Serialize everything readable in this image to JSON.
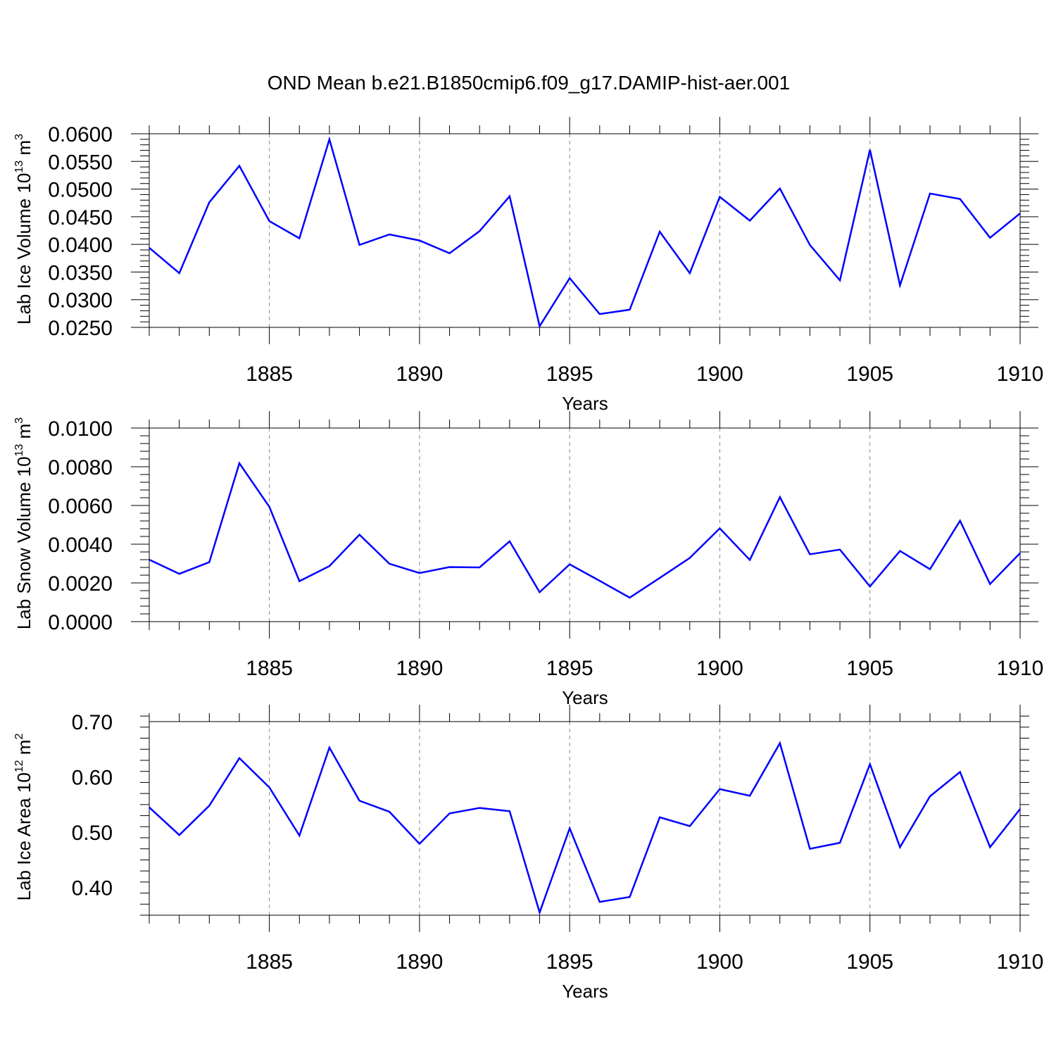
{
  "figure": {
    "title": "OND Mean b.e21.B1850cmip6.f09_g17.DAMIP-hist-aer.001"
  },
  "chart_data": [
    {
      "type": "line",
      "xlabel": "Years",
      "ylabel_parts": {
        "pre": "Lab Ice Volume 10",
        "sup1": "13",
        "mid": " m",
        "sup2": "3"
      },
      "xlim": [
        1881,
        1910
      ],
      "ylim": [
        0.025,
        0.06
      ],
      "xticks": [
        1885,
        1890,
        1895,
        1900,
        1905,
        1910
      ],
      "yticks": [
        0.025,
        0.03,
        0.035,
        0.04,
        0.045,
        0.05,
        0.055,
        0.06
      ],
      "ytick_labels": [
        "0.0250",
        "0.0300",
        "0.0350",
        "0.0400",
        "0.0450",
        "0.0500",
        "0.0550",
        "0.0600"
      ],
      "grid": "vertical dashed at major x ticks",
      "line_color": "#0000ff",
      "x": [
        1881,
        1882,
        1883,
        1884,
        1885,
        1886,
        1887,
        1888,
        1889,
        1890,
        1891,
        1892,
        1893,
        1894,
        1895,
        1896,
        1897,
        1898,
        1899,
        1900,
        1901,
        1902,
        1903,
        1904,
        1905,
        1906,
        1907,
        1908,
        1909,
        1910
      ],
      "y": [
        0.0394,
        0.0348,
        0.0476,
        0.0542,
        0.0442,
        0.0411,
        0.059,
        0.0399,
        0.0418,
        0.0407,
        0.0384,
        0.0424,
        0.0487,
        0.0252,
        0.0339,
        0.0274,
        0.0282,
        0.0423,
        0.0348,
        0.0486,
        0.0443,
        0.0501,
        0.0399,
        0.0335,
        0.0571,
        0.0326,
        0.0492,
        0.0482,
        0.0412,
        0.0456
      ]
    },
    {
      "type": "line",
      "xlabel": "Years",
      "ylabel_parts": {
        "pre": "Lab Snow Volume 10",
        "sup1": "13",
        "mid": " m",
        "sup2": "3"
      },
      "xlim": [
        1881,
        1910
      ],
      "ylim": [
        0,
        0.01
      ],
      "xticks": [
        1885,
        1890,
        1895,
        1900,
        1905,
        1910
      ],
      "yticks": [
        0,
        0.002,
        0.004,
        0.006,
        0.008,
        0.01
      ],
      "ytick_labels": [
        "0.0000",
        "0.0020",
        "0.0040",
        "0.0060",
        "0.0080",
        "0.0100"
      ],
      "grid": "vertical dashed at major x ticks",
      "line_color": "#0000ff",
      "x": [
        1881,
        1882,
        1883,
        1884,
        1885,
        1886,
        1887,
        1888,
        1889,
        1890,
        1891,
        1892,
        1893,
        1894,
        1895,
        1896,
        1897,
        1898,
        1899,
        1900,
        1901,
        1902,
        1903,
        1904,
        1905,
        1906,
        1907,
        1908,
        1909,
        1910
      ],
      "y": [
        0.0032,
        0.00247,
        0.00307,
        0.00818,
        0.00593,
        0.00209,
        0.00287,
        0.00449,
        0.00299,
        0.00251,
        0.00282,
        0.0028,
        0.00415,
        0.00152,
        0.00296,
        0.00211,
        0.00124,
        0.00226,
        0.00329,
        0.00482,
        0.00319,
        0.00643,
        0.00348,
        0.00372,
        0.00182,
        0.00365,
        0.00271,
        0.00521,
        0.00194,
        0.00354
      ]
    },
    {
      "type": "line",
      "xlabel": "Years",
      "ylabel_parts": {
        "pre": "Lab Ice Area 10",
        "sup1": "12",
        "mid": " m",
        "sup2": "2"
      },
      "xlim": [
        1881,
        1910
      ],
      "ylim": [
        0.35,
        0.7
      ],
      "xticks": [
        1885,
        1890,
        1895,
        1900,
        1905,
        1910
      ],
      "yticks": [
        0.4,
        0.5,
        0.6,
        0.7
      ],
      "ytick_labels": [
        "0.40",
        "0.50",
        "0.60",
        "0.70"
      ],
      "grid": "vertical dashed at major x ticks",
      "line_color": "#0000ff",
      "x": [
        1881,
        1882,
        1883,
        1884,
        1885,
        1886,
        1887,
        1888,
        1889,
        1890,
        1891,
        1892,
        1893,
        1894,
        1895,
        1896,
        1897,
        1898,
        1899,
        1900,
        1901,
        1902,
        1903,
        1904,
        1905,
        1906,
        1907,
        1908,
        1909,
        1910
      ],
      "y": [
        0.545,
        0.495,
        0.548,
        0.634,
        0.581,
        0.494,
        0.653,
        0.557,
        0.537,
        0.479,
        0.534,
        0.544,
        0.538,
        0.355,
        0.507,
        0.374,
        0.383,
        0.527,
        0.511,
        0.578,
        0.566,
        0.661,
        0.47,
        0.481,
        0.623,
        0.473,
        0.565,
        0.609,
        0.473,
        0.542
      ]
    }
  ]
}
